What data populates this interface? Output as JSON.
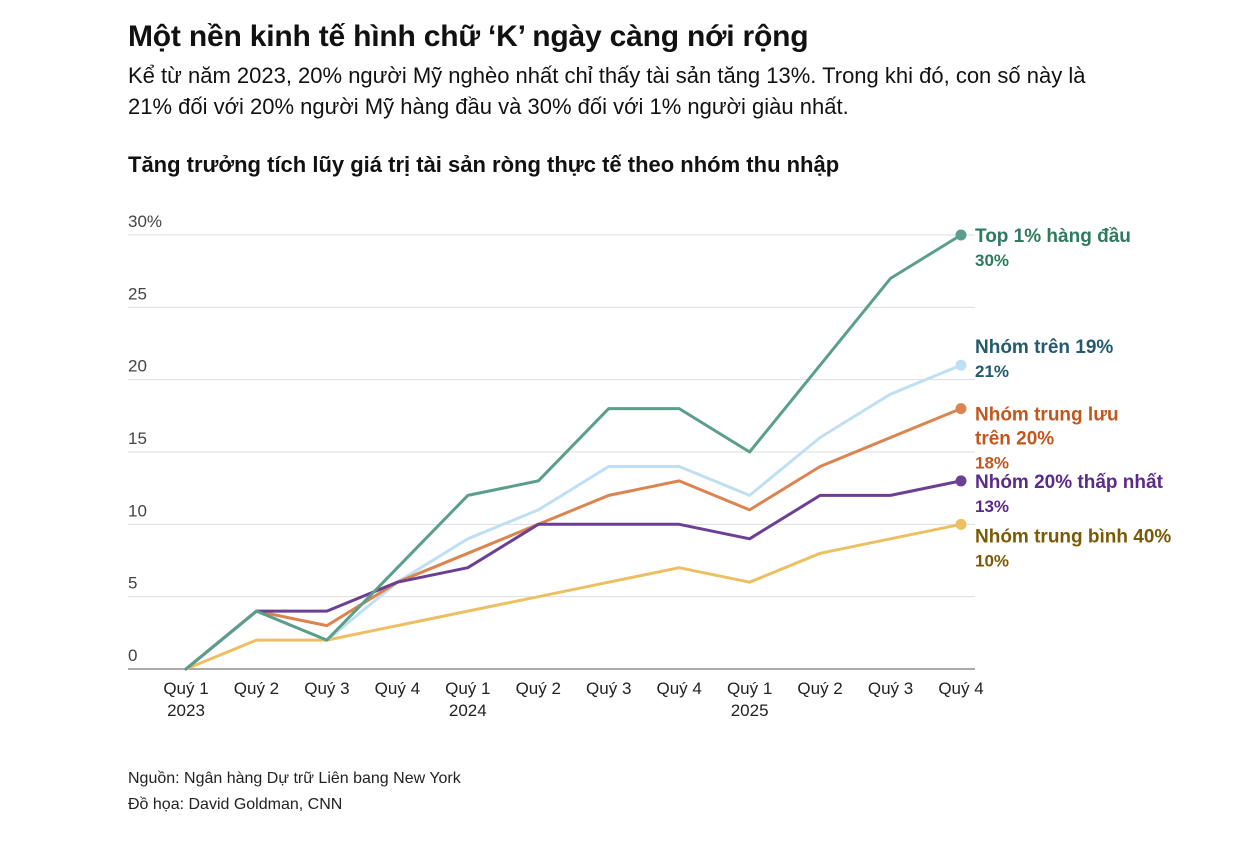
{
  "header": {
    "headline": "Một nền kinh tế hình chữ ‘K’ ngày càng nới rộng",
    "dek": "Kể từ năm 2023, 20% người Mỹ nghèo nhất chỉ thấy tài sản tăng 13%. Trong khi đó, con số này là 21% đối với 20% người Mỹ hàng đầu và 30% đối với 1% người giàu nhất."
  },
  "chart_data": {
    "type": "line",
    "title": "Tăng trưởng tích lũy giá trị tài sản ròng thực tế theo nhóm thu nhập",
    "xlabel": "",
    "ylabel": "",
    "ylim": [
      0,
      30
    ],
    "yticks": [
      "0",
      "5",
      "10",
      "15",
      "20",
      "25",
      "30%"
    ],
    "categories": [
      "Quý 1",
      "Quý 2",
      "Quý 3",
      "Quý 4",
      "Quý 1",
      "Quý 2",
      "Quý 3",
      "Quý 4",
      "Quý 1",
      "Quý 2",
      "Quý 3",
      "Quý 4"
    ],
    "year_labels": [
      "2023",
      "",
      "",
      "",
      "2024",
      "",
      "",
      "",
      "2025",
      "",
      "",
      ""
    ],
    "grid": true,
    "legend": "direct labels at line ends (right)",
    "series": [
      {
        "name": "Top 1% hàng đầu",
        "end_label": "30%",
        "color": "#5a9e8c",
        "label_color": "#2e7a5c",
        "values": [
          0,
          4,
          2,
          7,
          12,
          13,
          18,
          18,
          15,
          21,
          27,
          30
        ]
      },
      {
        "name": "Nhóm trên 19%",
        "end_label": "21%",
        "color": "#bfdff2",
        "label_color": "#235a6e",
        "values": [
          0,
          4,
          2,
          6,
          9,
          11,
          14,
          14,
          12,
          16,
          19,
          21
        ]
      },
      {
        "name": "Nhóm trung lưu trên 20%",
        "end_label": "18%",
        "color": "#db8450",
        "label_color": "#c2561c",
        "values": [
          0,
          4,
          3,
          6,
          8,
          10,
          12,
          13,
          11,
          14,
          16,
          18
        ]
      },
      {
        "name": "Nhóm 20% thấp nhất",
        "end_label": "13%",
        "color": "#6b3f94",
        "label_color": "#5b2a8a",
        "values": [
          0,
          4,
          4,
          6,
          7,
          10,
          10,
          10,
          9,
          12,
          12,
          13
        ]
      },
      {
        "name": "Nhóm trung bình 40%",
        "end_label": "10%",
        "color": "#ecc062",
        "label_color": "#7a5a05",
        "values": [
          0,
          2,
          2,
          3,
          4,
          5,
          6,
          7,
          6,
          8,
          9,
          10
        ]
      }
    ]
  },
  "footer": {
    "source": "Nguồn: Ngân hàng Dự trữ Liên bang New York",
    "byline": "Đồ họa: David Goldman, CNN"
  }
}
